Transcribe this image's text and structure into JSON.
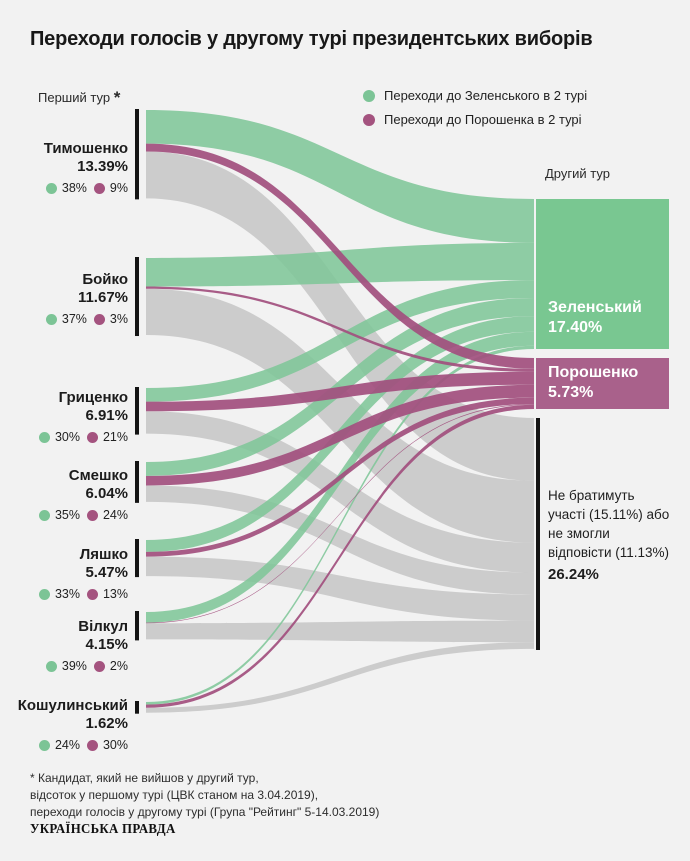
{
  "title": "Переходи голосів у другому турі президентських виборів",
  "first_round_label": "Перший тур",
  "first_round_marker": "*",
  "second_round_label": "Другий тур",
  "legend": [
    {
      "label": "Переходи до Зеленського в 2 турі",
      "color": "#7cc496"
    },
    {
      "label": "Переходи до Порошенка в 2 турі",
      "color": "#a4537f"
    }
  ],
  "colors": {
    "flow_green": "#7fc699",
    "flow_purple": "#a24f7e",
    "flow_gray": "#c2c2c2",
    "node_bar": "#141414",
    "zelensky_box": "#79c791",
    "poroshenko_box": "#a9618b",
    "background": "#f2f2f2"
  },
  "chart_data": {
    "type": "sankey",
    "unit": "%",
    "note": "share of each first-round candidate's voters moving to each second-round option",
    "sources": [
      {
        "name": "Тимошенко",
        "first_round": 13.39,
        "to_zelensky": 38,
        "to_poroshenko": 9
      },
      {
        "name": "Бойко",
        "first_round": 11.67,
        "to_zelensky": 37,
        "to_poroshenko": 3
      },
      {
        "name": "Гриценко",
        "first_round": 6.91,
        "to_zelensky": 30,
        "to_poroshenko": 21
      },
      {
        "name": "Смешко",
        "first_round": 6.04,
        "to_zelensky": 35,
        "to_poroshenko": 24
      },
      {
        "name": "Ляшко",
        "first_round": 5.47,
        "to_zelensky": 33,
        "to_poroshenko": 13
      },
      {
        "name": "Вілкул",
        "first_round": 4.15,
        "to_zelensky": 39,
        "to_poroshenko": 2
      },
      {
        "name": "Кошулинський",
        "first_round": 1.62,
        "to_zelensky": 24,
        "to_poroshenko": 30
      }
    ],
    "targets": [
      {
        "name": "Зеленський",
        "pct": 17.4
      },
      {
        "name": "Порошенко",
        "pct": 5.73
      },
      {
        "name": "Не братимуть участі (15.11%) або не змогли відповісти (11.13%)",
        "pct": 26.24
      }
    ]
  },
  "gray_dest": {
    "lines": [
      "Не братимуть",
      "участі (15.11%) або",
      "не змогли",
      "відповісти (11.13%)"
    ],
    "value": "26.24%"
  },
  "footnote_lines": [
    "* Кандидат, який не вийшов у другий тур,",
    "відсоток у першому турі (ЦВК станом на 3.04.2019),",
    "переходи голосів у другому турі (Група \"Рейтинг\" 5-14.03.2019)"
  ],
  "logo": "УКРАЇНСЬКА ПРАВДА"
}
